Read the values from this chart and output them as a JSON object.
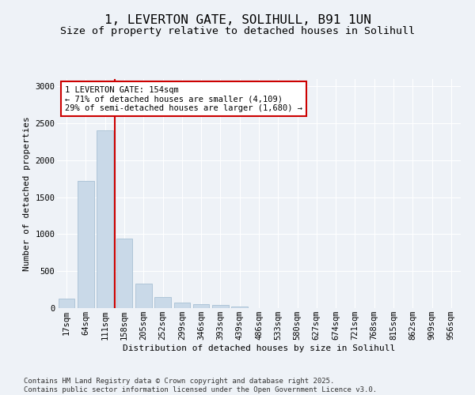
{
  "title_line1": "1, LEVERTON GATE, SOLIHULL, B91 1UN",
  "title_line2": "Size of property relative to detached houses in Solihull",
  "xlabel": "Distribution of detached houses by size in Solihull",
  "ylabel": "Number of detached properties",
  "bar_labels": [
    "17sqm",
    "64sqm",
    "111sqm",
    "158sqm",
    "205sqm",
    "252sqm",
    "299sqm",
    "346sqm",
    "393sqm",
    "439sqm",
    "486sqm",
    "533sqm",
    "580sqm",
    "627sqm",
    "674sqm",
    "721sqm",
    "768sqm",
    "815sqm",
    "862sqm",
    "909sqm",
    "956sqm"
  ],
  "bar_values": [
    130,
    1720,
    2400,
    940,
    330,
    155,
    80,
    55,
    40,
    20,
    5,
    0,
    0,
    0,
    0,
    0,
    0,
    0,
    0,
    0,
    0
  ],
  "bar_color": "#c9d9e8",
  "bar_edgecolor": "#a8c0d4",
  "vline_color": "#cc0000",
  "annotation_text": "1 LEVERTON GATE: 154sqm\n← 71% of detached houses are smaller (4,109)\n29% of semi-detached houses are larger (1,680) →",
  "annotation_box_color": "#cc0000",
  "ylim": [
    0,
    3100
  ],
  "yticks": [
    0,
    500,
    1000,
    1500,
    2000,
    2500,
    3000
  ],
  "footer_line1": "Contains HM Land Registry data © Crown copyright and database right 2025.",
  "footer_line2": "Contains public sector information licensed under the Open Government Licence v3.0.",
  "bg_color": "#eef2f7",
  "grid_color": "#ffffff",
  "title_fontsize": 11.5,
  "subtitle_fontsize": 9.5,
  "axis_label_fontsize": 8,
  "tick_fontsize": 7.5,
  "annotation_fontsize": 7.5,
  "footer_fontsize": 6.5
}
